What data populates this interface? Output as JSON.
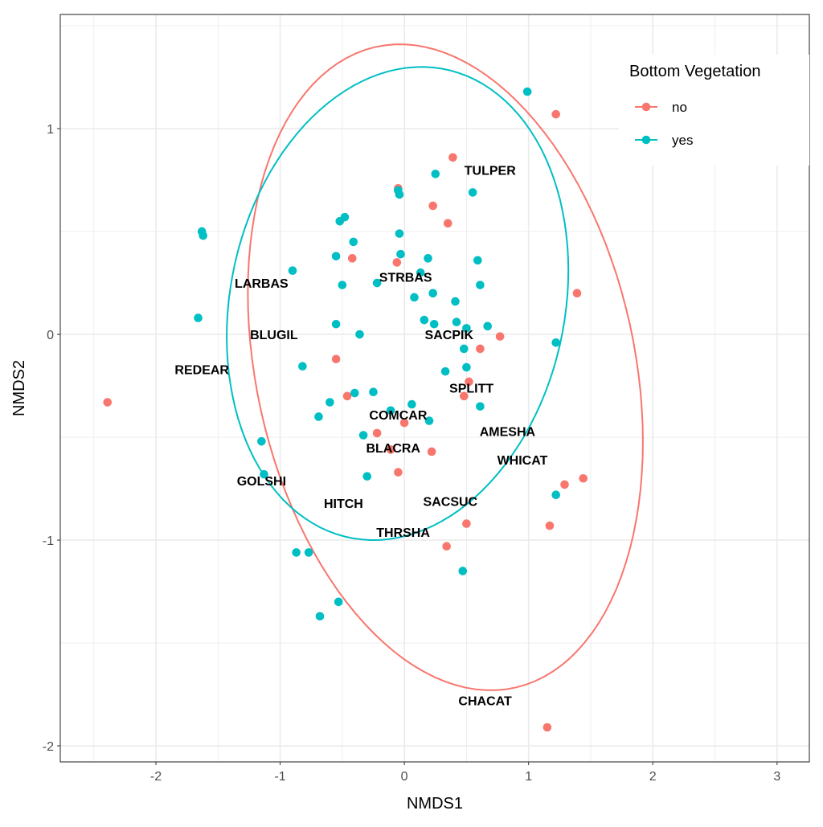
{
  "chart_data": {
    "type": "scatter",
    "xlabel": "NMDS1",
    "ylabel": "NMDS2",
    "xlim": [
      -2.77,
      3.26
    ],
    "ylim": [
      -2.078,
      1.555
    ],
    "x_ticks": [
      -2,
      -1,
      0,
      1,
      2,
      3
    ],
    "y_ticks": [
      1,
      0,
      -1,
      -2
    ],
    "grid": true,
    "legend": {
      "title": "Bottom Vegetation",
      "placement": "top-right",
      "entries": [
        {
          "label": "no",
          "color": "#F8766D"
        },
        {
          "label": "yes",
          "color": "#00BFC4"
        }
      ]
    },
    "series": [
      {
        "name": "no",
        "color": "#F8766D",
        "points": [
          [
            0.39,
            0.86
          ],
          [
            -0.05,
            0.71
          ],
          [
            0.23,
            0.625
          ],
          [
            0.35,
            0.54
          ],
          [
            -0.42,
            0.37
          ],
          [
            -0.06,
            0.35
          ],
          [
            0.77,
            -0.01
          ],
          [
            0.61,
            -0.07
          ],
          [
            -0.55,
            -0.12
          ],
          [
            0.52,
            -0.23
          ],
          [
            0.48,
            -0.3
          ],
          [
            -0.46,
            -0.3
          ],
          [
            0.0,
            -0.43
          ],
          [
            -0.22,
            -0.48
          ],
          [
            -0.11,
            -0.56
          ],
          [
            0.22,
            -0.57
          ],
          [
            -0.05,
            -0.67
          ],
          [
            0.5,
            -0.92
          ],
          [
            0.34,
            -1.03
          ],
          [
            -2.39,
            -0.33
          ],
          [
            1.22,
            1.07
          ],
          [
            1.39,
            0.2
          ],
          [
            1.29,
            -0.73
          ],
          [
            1.44,
            -0.7
          ],
          [
            1.17,
            -0.93
          ],
          [
            1.15,
            -1.91
          ]
        ]
      },
      {
        "name": "yes",
        "color": "#00BFC4",
        "points": [
          [
            0.25,
            0.78
          ],
          [
            -0.04,
            0.68
          ],
          [
            -0.05,
            0.7
          ],
          [
            0.55,
            0.69
          ],
          [
            -0.52,
            0.55
          ],
          [
            -0.48,
            0.57
          ],
          [
            -0.04,
            0.49
          ],
          [
            -0.41,
            0.45
          ],
          [
            -0.55,
            0.38
          ],
          [
            -0.03,
            0.39
          ],
          [
            0.19,
            0.37
          ],
          [
            0.59,
            0.36
          ],
          [
            -0.9,
            0.31
          ],
          [
            0.13,
            0.3
          ],
          [
            -0.5,
            0.24
          ],
          [
            -0.22,
            0.25
          ],
          [
            0.61,
            0.24
          ],
          [
            0.08,
            0.18
          ],
          [
            0.23,
            0.2
          ],
          [
            0.41,
            0.16
          ],
          [
            0.16,
            0.07
          ],
          [
            0.24,
            0.05
          ],
          [
            0.42,
            0.06
          ],
          [
            0.5,
            0.03
          ],
          [
            0.67,
            0.04
          ],
          [
            -0.55,
            0.05
          ],
          [
            -0.36,
            0.0
          ],
          [
            0.48,
            -0.07
          ],
          [
            -0.82,
            -0.155
          ],
          [
            0.33,
            -0.18
          ],
          [
            0.5,
            -0.16
          ],
          [
            0.61,
            -0.35
          ],
          [
            -0.4,
            -0.285
          ],
          [
            -0.25,
            -0.28
          ],
          [
            -0.6,
            -0.33
          ],
          [
            0.06,
            -0.34
          ],
          [
            -0.69,
            -0.4
          ],
          [
            -0.11,
            -0.37
          ],
          [
            0.2,
            -0.42
          ],
          [
            -0.33,
            -0.49
          ],
          [
            -0.3,
            -0.69
          ],
          [
            -0.87,
            -1.06
          ],
          [
            -0.77,
            -1.06
          ],
          [
            -1.66,
            0.08
          ],
          [
            -1.63,
            0.5
          ],
          [
            -1.62,
            0.48
          ],
          [
            -1.15,
            -0.52
          ],
          [
            -1.13,
            -0.68
          ],
          [
            -0.68,
            -1.37
          ],
          [
            -0.53,
            -1.3
          ],
          [
            0.47,
            -1.15
          ],
          [
            0.99,
            1.18
          ],
          [
            1.22,
            -0.04
          ],
          [
            1.22,
            -0.78
          ]
        ]
      }
    ],
    "ellipses": [
      {
        "group": "no",
        "color": "#F8766D",
        "x_range": [
          -1.26,
          1.92
        ],
        "y_range": [
          -1.73,
          1.41
        ],
        "x_at_max_y_offset": -0.23
      },
      {
        "group": "yes",
        "color": "#00BFC4",
        "x_range": [
          -1.43,
          1.32
        ],
        "y_range": [
          -1.0,
          1.3
        ],
        "x_at_max_y_offset": 0.14
      }
    ],
    "annotations": [
      {
        "text": "TULPER",
        "x": 0.69,
        "y": 0.8
      },
      {
        "text": "LARBAS",
        "x": -1.15,
        "y": 0.25
      },
      {
        "text": "STRBAS",
        "x": 0.01,
        "y": 0.28
      },
      {
        "text": "BLUGIL",
        "x": -1.05,
        "y": 0.0
      },
      {
        "text": "SACPIK",
        "x": 0.36,
        "y": 0.0
      },
      {
        "text": "REDEAR",
        "x": -1.63,
        "y": -0.17
      },
      {
        "text": "SPLITT",
        "x": 0.54,
        "y": -0.26
      },
      {
        "text": "COMCAR",
        "x": -0.05,
        "y": -0.39
      },
      {
        "text": "AMESHA",
        "x": 0.83,
        "y": -0.47
      },
      {
        "text": "BLACRA",
        "x": -0.09,
        "y": -0.55
      },
      {
        "text": "WHICAT",
        "x": 0.95,
        "y": -0.61
      },
      {
        "text": "GOLSHI",
        "x": -1.15,
        "y": -0.71
      },
      {
        "text": "HITCH",
        "x": -0.49,
        "y": -0.82
      },
      {
        "text": "SACSUC",
        "x": 0.37,
        "y": -0.81
      },
      {
        "text": "THRSHA",
        "x": -0.01,
        "y": -0.96
      },
      {
        "text": "CHACAT",
        "x": 0.65,
        "y": -1.78
      }
    ]
  }
}
